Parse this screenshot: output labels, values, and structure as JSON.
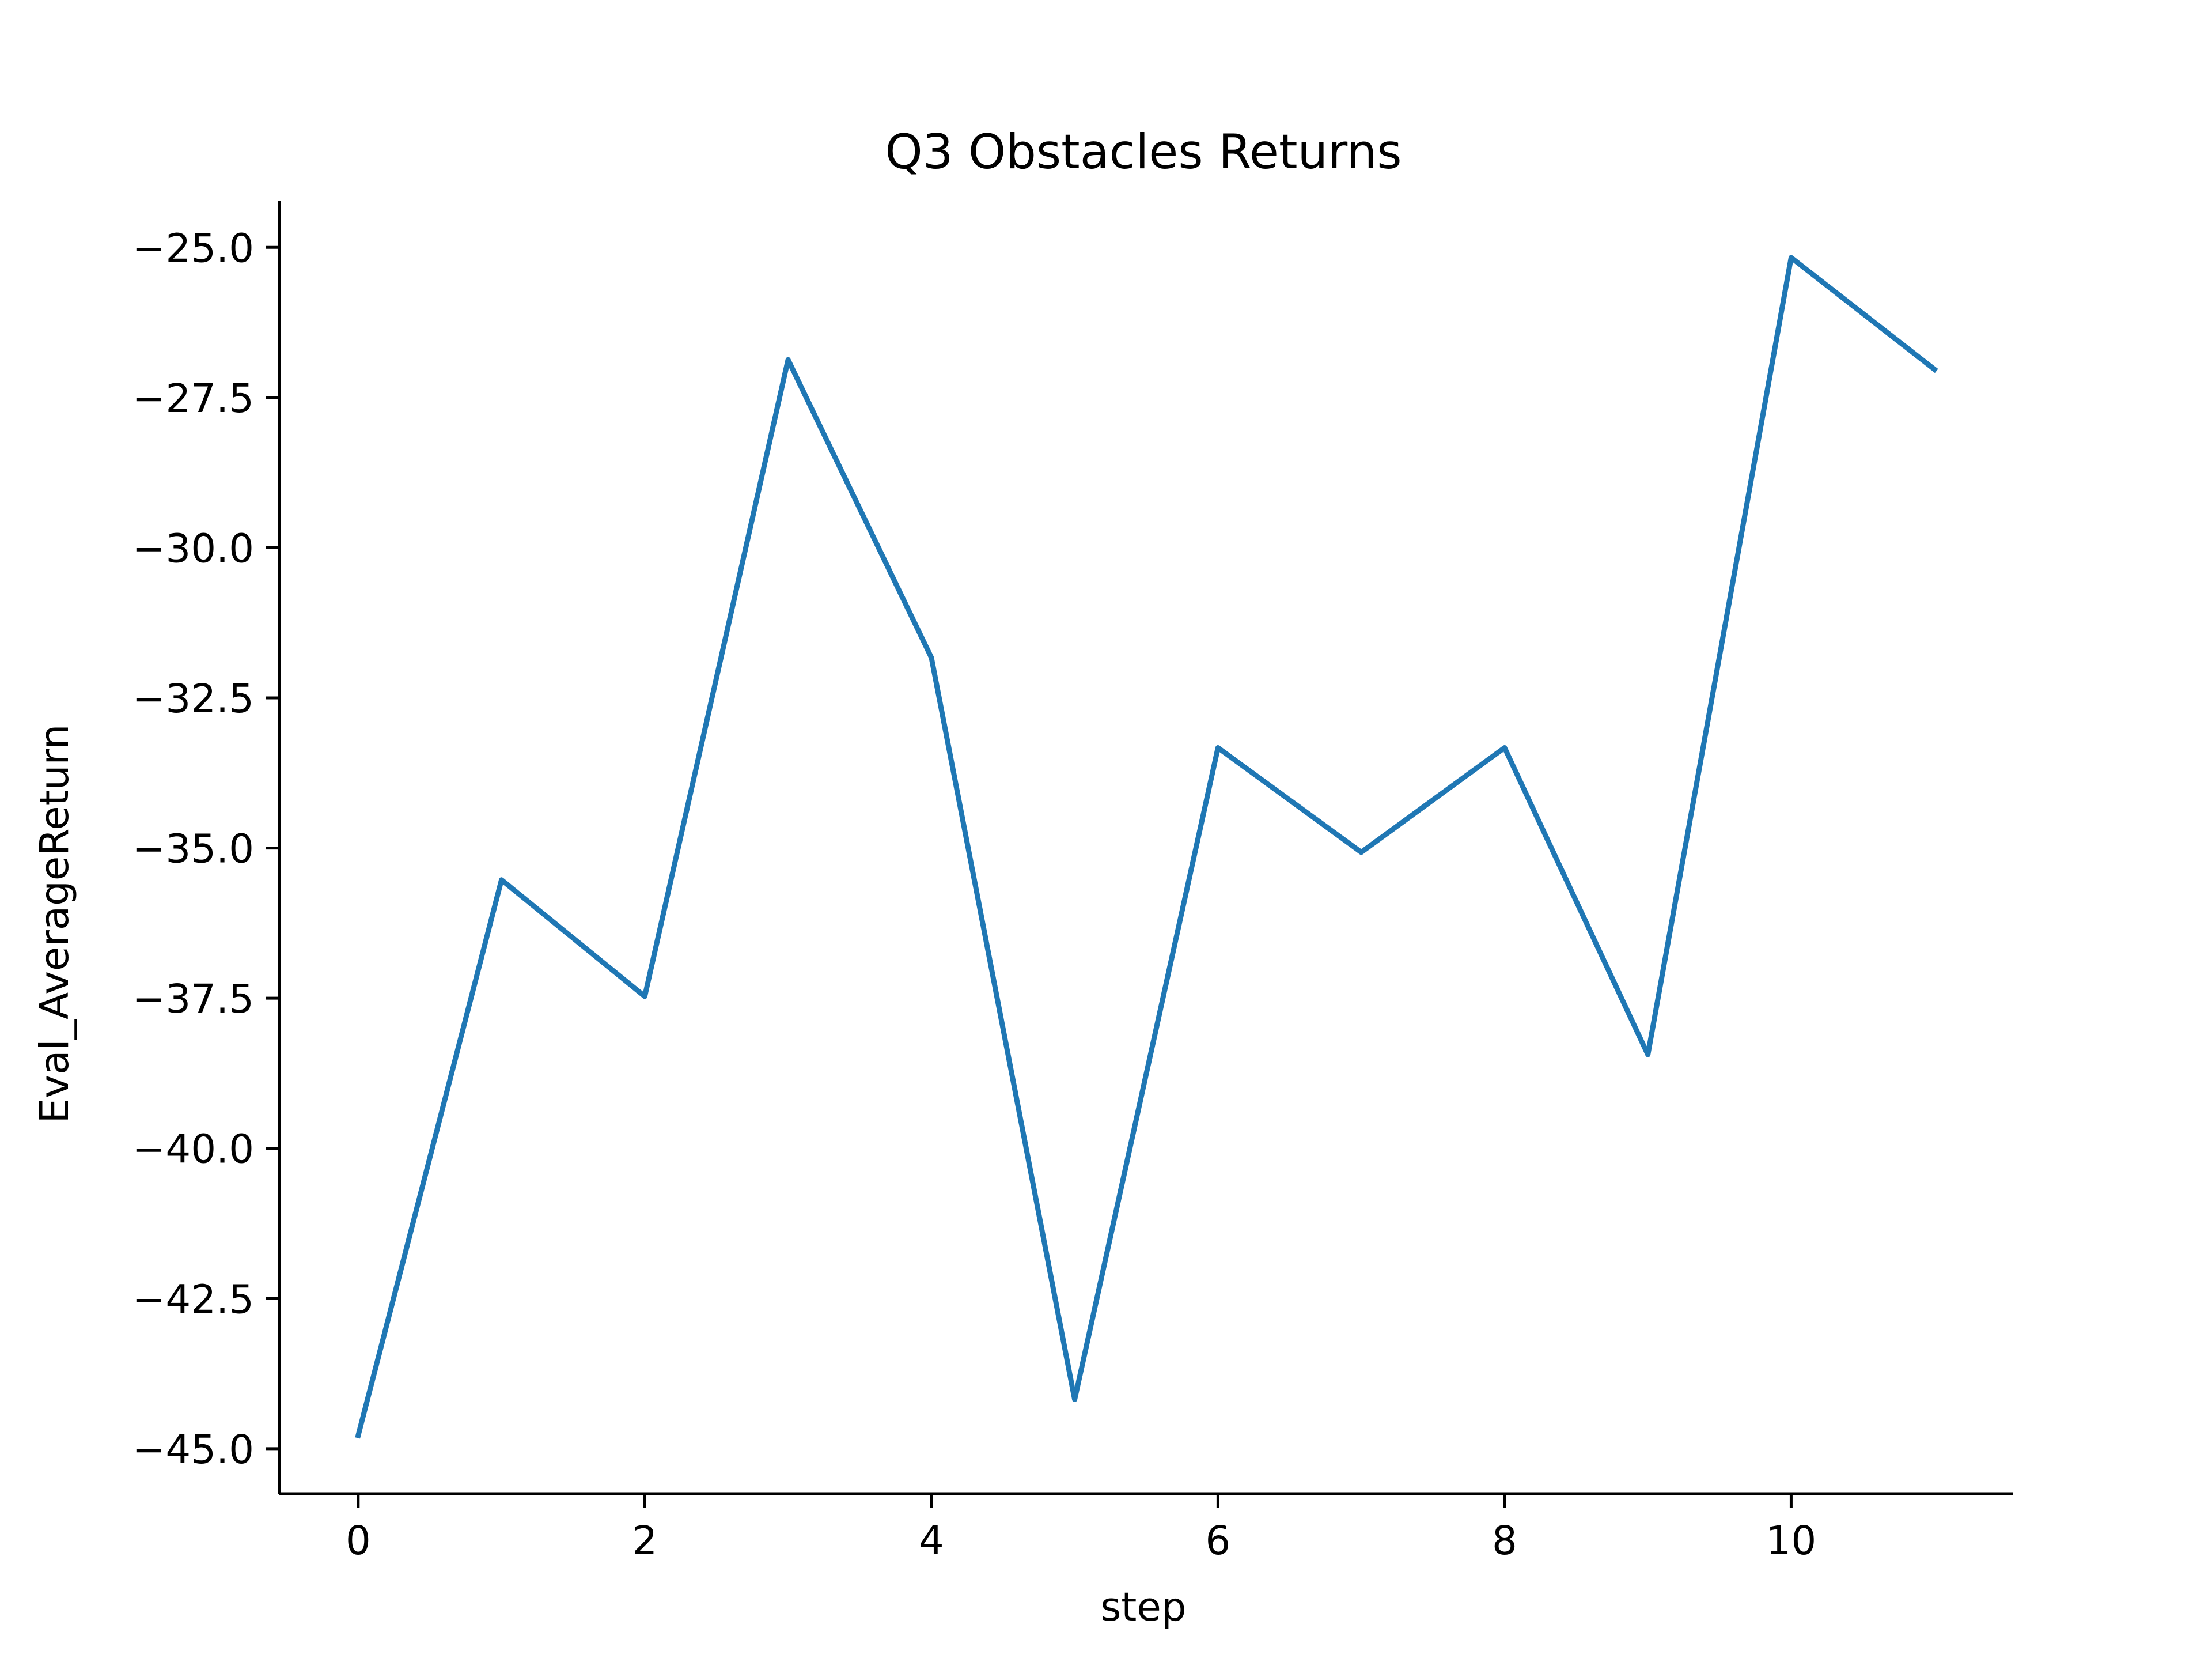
{
  "chart_data": {
    "type": "line",
    "title": "Q3 Obstacles Returns",
    "xlabel": "step",
    "ylabel": "Eval_AverageReturn",
    "x": [
      0,
      1,
      2,
      3,
      4,
      5,
      6,
      7,
      8,
      9,
      10,
      11
    ],
    "series": [
      {
        "values": [
          -44.78,
          -35.53,
          -37.47,
          -26.87,
          -31.83,
          -44.18,
          -33.33,
          -35.07,
          -33.33,
          -38.44,
          -25.17,
          -27.03
        ],
        "color": "#1f77b4"
      }
    ],
    "xlim": [
      -0.55,
      11.55
    ],
    "ylim": [
      -45.75,
      -24.22
    ],
    "xticks": [
      0,
      2,
      4,
      6,
      8,
      10
    ],
    "yticks": [
      -25.0,
      -27.5,
      -30.0,
      -32.5,
      -35.0,
      -37.5,
      -40.0,
      -42.5,
      -45.0
    ],
    "xtick_labels": [
      "0",
      "2",
      "4",
      "6",
      "8",
      "10"
    ],
    "ytick_labels": [
      "−25.0",
      "−27.5",
      "−30.0",
      "−32.5",
      "−35.0",
      "−37.5",
      "−40.0",
      "−42.5",
      "−45.0"
    ],
    "grid": false,
    "legend": "none",
    "spines": [
      "left",
      "bottom"
    ]
  }
}
